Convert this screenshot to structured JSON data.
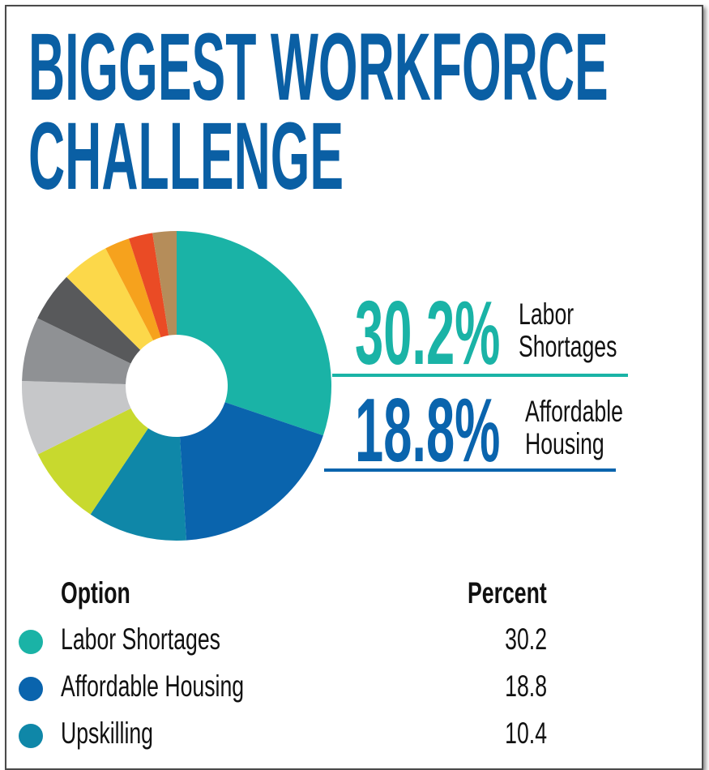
{
  "title": "BIGGEST WORKFORCE CHALLENGE",
  "chart_data": {
    "type": "pie",
    "donut": true,
    "categories": [
      "Labor Shortages",
      "Affordable Housing",
      "Upskilling",
      null,
      null,
      null,
      null,
      null,
      null,
      null,
      null
    ],
    "values": [
      30.2,
      18.8,
      10.4,
      8.3,
      7.8,
      6.7,
      5.2,
      5.0,
      2.6,
      2.5,
      2.5
    ],
    "value_labels": [
      "30.2%",
      "18.8%",
      null,
      null,
      null,
      null,
      null,
      null,
      null,
      null,
      null
    ],
    "colors": [
      "#1ab3a6",
      "#0a64ad",
      "#0f87a8",
      "#c8d92e",
      "#c6c7c9",
      "#8f9194",
      "#58595b",
      "#fcd84a",
      "#f6a21d",
      "#ea4b25",
      "#b58d5a"
    ]
  },
  "table": {
    "header": [
      "Option",
      "Percent"
    ]
  }
}
